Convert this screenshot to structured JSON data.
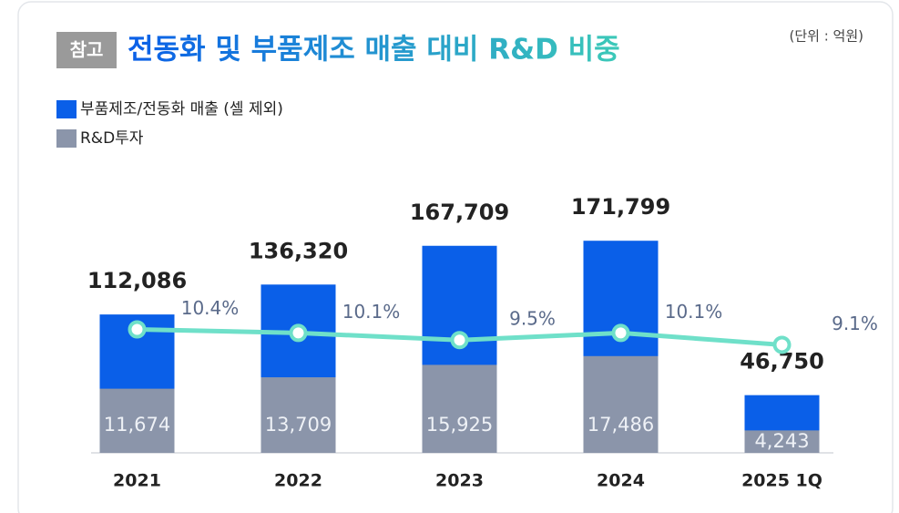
{
  "chart_data": {
    "type": "bar",
    "badge": "참고",
    "title": "전동화 및 부품제조 매출 대비 R&D 비중",
    "unit_note": "(단위 : 억원)",
    "categories": [
      "2021",
      "2022",
      "2023",
      "2024",
      "2025 1Q"
    ],
    "series": [
      {
        "name": "부품제조/전동화 매출 (셀 제외)",
        "color": "#0a5fe8",
        "values": [
          112086,
          136320,
          167709,
          171799,
          46750
        ],
        "value_labels": [
          "112,086",
          "136,320",
          "167,709",
          "171,799",
          "46,750"
        ]
      },
      {
        "name": "R&D투자",
        "color": "#8b95aa",
        "axis": "y2",
        "values": [
          11674,
          13709,
          15925,
          17486,
          4243
        ],
        "value_labels": [
          "11,674",
          "13,709",
          "15,925",
          "17,486",
          "4,243"
        ]
      },
      {
        "type": "line",
        "color": "#6fe0c9",
        "axis": "y3",
        "values": [
          10.4,
          10.1,
          9.5,
          10.1,
          9.1
        ],
        "value_labels": [
          "10.4%",
          "10.1%",
          "9.5%",
          "10.1%",
          "9.1%"
        ]
      }
    ],
    "ylim": [
      0,
      200000
    ],
    "y2lim": [
      0,
      44000
    ],
    "y3lim": [
      0,
      20.8
    ]
  }
}
